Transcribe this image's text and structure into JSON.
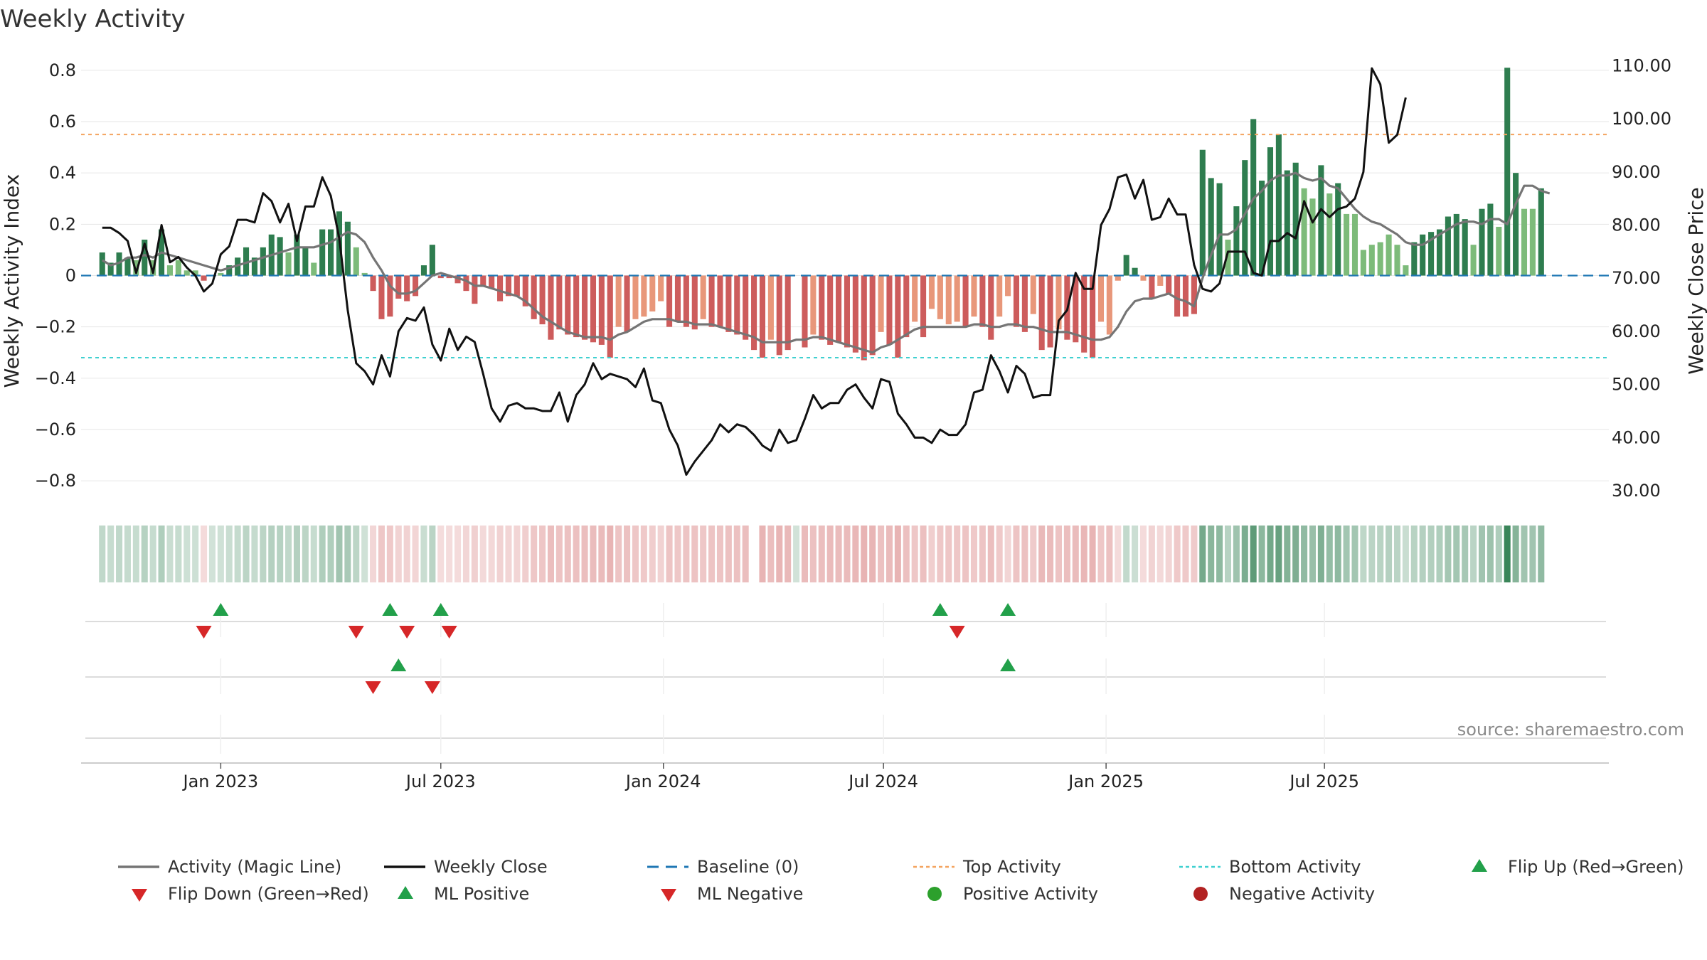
{
  "chart_data": {
    "type": "bar",
    "title": "Weekly Activity",
    "ylabel_left": "Weekly Activity Index",
    "ylabel_right": "Weekly Close Price",
    "source": "source: sharemaestro.com",
    "ylim_left": [
      -0.88,
      0.88
    ],
    "yticks_left": [
      {
        "value": 0.8,
        "label": "0.8"
      },
      {
        "value": 0.6,
        "label": "0.6"
      },
      {
        "value": 0.4,
        "label": "0.4"
      },
      {
        "value": 0.2,
        "label": "0.2"
      },
      {
        "value": 0,
        "label": "0"
      },
      {
        "value": -0.2,
        "label": "−0.2"
      },
      {
        "value": -0.4,
        "label": "−0.4"
      },
      {
        "value": -0.6,
        "label": "−0.6"
      },
      {
        "value": -0.8,
        "label": "−0.8"
      }
    ],
    "ylim_right": [
      28,
      113
    ],
    "yticks_right": [
      {
        "value": 110,
        "label": "110.00"
      },
      {
        "value": 100,
        "label": "100.00"
      },
      {
        "value": 90,
        "label": "90.00"
      },
      {
        "value": 80,
        "label": "80.00"
      },
      {
        "value": 70,
        "label": "70.00"
      },
      {
        "value": 60,
        "label": "60.00"
      },
      {
        "value": 50,
        "label": "50.00"
      },
      {
        "value": 40,
        "label": "40.00"
      },
      {
        "value": 30,
        "label": "30.00"
      }
    ],
    "xlim_weeks": [
      -16.5,
      164
    ],
    "xticks": [
      {
        "week": 0,
        "label": "Jan 2023"
      },
      {
        "week": 26,
        "label": "Jul 2023"
      },
      {
        "week": 52.3,
        "label": "Jan 2024"
      },
      {
        "week": 78.3,
        "label": "Jul 2024"
      },
      {
        "week": 104.6,
        "label": "Jan 2025"
      },
      {
        "week": 130.4,
        "label": "Jul 2025"
      }
    ],
    "start_week": -14,
    "activity": [
      0.09,
      0.05,
      0.09,
      0.07,
      0.06,
      0.14,
      0.06,
      0.18,
      0.04,
      0.06,
      0.02,
      0.02,
      -0.02,
      0,
      0.01,
      0.04,
      0.07,
      0.11,
      0.07,
      0.11,
      0.16,
      0.15,
      0.09,
      0.16,
      0.11,
      0.05,
      0.18,
      0.18,
      0.25,
      0.21,
      0.11,
      0.01,
      -0.06,
      -0.17,
      -0.16,
      -0.09,
      -0.1,
      -0.08,
      0.04,
      0.12,
      -0.01,
      -0.01,
      -0.03,
      -0.06,
      -0.11,
      -0.04,
      -0.05,
      -0.1,
      -0.08,
      -0.08,
      -0.12,
      -0.17,
      -0.19,
      -0.25,
      -0.21,
      -0.23,
      -0.24,
      -0.25,
      -0.26,
      -0.27,
      -0.32,
      -0.2,
      -0.22,
      -0.17,
      -0.16,
      -0.14,
      -0.1,
      -0.2,
      -0.18,
      -0.2,
      -0.21,
      -0.17,
      -0.2,
      -0.2,
      -0.22,
      -0.23,
      -0.25,
      -0.29,
      -0.32,
      -0.25,
      -0.31,
      -0.29,
      0,
      -0.28,
      -0.23,
      -0.25,
      -0.27,
      -0.26,
      -0.28,
      -0.3,
      -0.33,
      -0.31,
      -0.22,
      -0.27,
      -0.32,
      -0.24,
      -0.18,
      -0.24,
      -0.13,
      -0.17,
      -0.19,
      -0.18,
      -0.2,
      -0.16,
      -0.2,
      -0.25,
      -0.16,
      -0.08,
      -0.2,
      -0.22,
      -0.15,
      -0.29,
      -0.28,
      -0.21,
      -0.25,
      -0.26,
      -0.3,
      -0.32,
      -0.18,
      -0.23,
      -0.02,
      0.08,
      0.03,
      -0.02,
      -0.09,
      -0.04,
      -0.07,
      -0.16,
      -0.16,
      -0.15,
      0.49,
      0.38,
      0.36,
      0.14,
      0.27,
      0.45,
      0.61,
      0.37,
      0.5,
      0.55,
      0.41,
      0.44,
      0.34,
      0.3,
      0.43,
      0.32,
      0.36,
      0.24,
      0.24,
      0.1,
      0.12,
      0.13,
      0.16,
      0.12,
      0.04,
      0.13,
      0.16,
      0.17,
      0.18,
      0.23,
      0.24,
      0.22,
      0.12,
      0.26,
      0.28,
      0.19,
      0.81,
      0.4,
      0.26,
      0.26,
      0.34
    ],
    "magic_line": [
      0.06,
      0.04,
      0.05,
      0.07,
      0.07,
      0.08,
      0.07,
      0.09,
      0.08,
      0.07,
      0.06,
      0.05,
      0.04,
      0.03,
      0.02,
      0.03,
      0.04,
      0.05,
      0.06,
      0.07,
      0.08,
      0.09,
      0.1,
      0.11,
      0.11,
      0.11,
      0.12,
      0.13,
      0.15,
      0.17,
      0.16,
      0.13,
      0.07,
      0.02,
      -0.04,
      -0.07,
      -0.07,
      -0.06,
      -0.03,
      0,
      0.01,
      0,
      -0.01,
      -0.02,
      -0.04,
      -0.04,
      -0.05,
      -0.06,
      -0.07,
      -0.08,
      -0.1,
      -0.13,
      -0.16,
      -0.18,
      -0.2,
      -0.22,
      -0.23,
      -0.24,
      -0.24,
      -0.24,
      -0.25,
      -0.23,
      -0.22,
      -0.2,
      -0.18,
      -0.17,
      -0.17,
      -0.17,
      -0.18,
      -0.18,
      -0.19,
      -0.19,
      -0.19,
      -0.2,
      -0.21,
      -0.22,
      -0.23,
      -0.24,
      -0.26,
      -0.26,
      -0.26,
      -0.26,
      -0.25,
      -0.25,
      -0.24,
      -0.24,
      -0.25,
      -0.26,
      -0.27,
      -0.28,
      -0.29,
      -0.3,
      -0.28,
      -0.27,
      -0.25,
      -0.23,
      -0.21,
      -0.2,
      -0.2,
      -0.2,
      -0.2,
      -0.2,
      -0.2,
      -0.19,
      -0.19,
      -0.2,
      -0.2,
      -0.19,
      -0.19,
      -0.2,
      -0.2,
      -0.21,
      -0.22,
      -0.22,
      -0.22,
      -0.23,
      -0.24,
      -0.25,
      -0.25,
      -0.24,
      -0.2,
      -0.14,
      -0.1,
      -0.09,
      -0.09,
      -0.08,
      -0.07,
      -0.09,
      -0.1,
      -0.12,
      -0.01,
      0.08,
      0.16,
      0.16,
      0.18,
      0.24,
      0.3,
      0.33,
      0.37,
      0.39,
      0.39,
      0.4,
      0.38,
      0.37,
      0.38,
      0.35,
      0.34,
      0.3,
      0.26,
      0.23,
      0.21,
      0.2,
      0.18,
      0.16,
      0.13,
      0.12,
      0.12,
      0.14,
      0.16,
      0.18,
      0.2,
      0.21,
      0.21,
      0.2,
      0.22,
      0.22,
      0.2,
      0.28,
      0.35,
      0.35,
      0.33,
      0.32
    ],
    "close": [
      79.5,
      79.5,
      78.5,
      77,
      71,
      76.5,
      71,
      80,
      73,
      74,
      72,
      70.5,
      67.5,
      69,
      74.5,
      76,
      81,
      81,
      80.5,
      86,
      84.5,
      80.5,
      84,
      77,
      83.5,
      83.5,
      89,
      85.5,
      77.5,
      64,
      54,
      52.5,
      50,
      55.5,
      51.5,
      60,
      62.5,
      62,
      64.5,
      57.5,
      54.5,
      60.5,
      56.5,
      59,
      58,
      52,
      45.5,
      43,
      46,
      46.5,
      45.5,
      45.5,
      45,
      45,
      48.5,
      43,
      48,
      50,
      54,
      51,
      52,
      51.5,
      51,
      49.5,
      53,
      47,
      46.5,
      41.5,
      38.5,
      33,
      35.5,
      37.5,
      39.5,
      42.5,
      41,
      42.5,
      42,
      40.5,
      38.5,
      37.5,
      41.5,
      39,
      39.5,
      43.5,
      48,
      45.5,
      46.5,
      46.5,
      49,
      50,
      47.5,
      45.5,
      51,
      50.5,
      44.5,
      42.5,
      40,
      40,
      39,
      41.5,
      40.5,
      40.5,
      42.5,
      48.5,
      49,
      55.5,
      52.5,
      48.5,
      53.5,
      52,
      47.5,
      48,
      48,
      62,
      64,
      71,
      68,
      68,
      80,
      83,
      89,
      89.5,
      85,
      88.5,
      81,
      81.5,
      85,
      82,
      82,
      72.5,
      68,
      67.5,
      69,
      75,
      75,
      75,
      71,
      70.5,
      77,
      77,
      78.5,
      77.5,
      84.5,
      80.5,
      83,
      81.5,
      83,
      83.5,
      85,
      90,
      109.5,
      106.5,
      95.5,
      97,
      104
    ],
    "baseline": 0,
    "top_activity": 0.55,
    "bottom_activity": -0.32,
    "flip_up_weeks": [
      0,
      20,
      26,
      85,
      93
    ],
    "flip_down_weeks": [
      -2,
      16,
      22,
      27,
      87
    ],
    "ml_positive_weeks": [
      21,
      93
    ],
    "ml_negative_weeks": [
      18,
      25
    ],
    "strip_gap_week": 63,
    "colors": {
      "pos_strong": "#2e7d4f",
      "pos_light": "#7dbb7a",
      "neg_strong": "#cd5c5c",
      "neg_light": "#e8977a",
      "magic_line": "#757575",
      "close_line": "#111111",
      "baseline": "#1f77b4",
      "top_activity": "#f4a460",
      "bottom_activity": "#40d0d0",
      "marker_up": "#22a04a",
      "marker_down": "#d62728",
      "pos_dot": "#2ca02c",
      "neg_dot": "#b22222"
    },
    "legend": [
      {
        "key": "magic",
        "label": "Activity (Magic Line)"
      },
      {
        "key": "close",
        "label": "Weekly Close"
      },
      {
        "key": "baseline",
        "label": "Baseline (0)"
      },
      {
        "key": "top",
        "label": "Top Activity"
      },
      {
        "key": "bottom",
        "label": "Bottom Activity"
      },
      {
        "key": "flipup",
        "label": "Flip Up (Red→Green)"
      },
      {
        "key": "flipdown",
        "label": "Flip Down (Green→Red)"
      },
      {
        "key": "mlpos",
        "label": "ML Positive"
      },
      {
        "key": "mlneg",
        "label": "ML Negative"
      },
      {
        "key": "posact",
        "label": "Positive Activity"
      },
      {
        "key": "negact",
        "label": "Negative Activity"
      }
    ]
  }
}
